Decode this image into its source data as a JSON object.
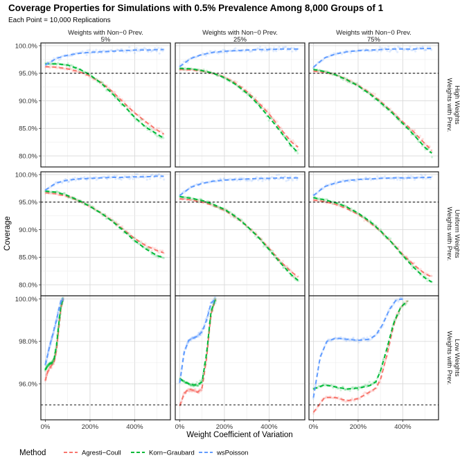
{
  "chart_data": {
    "type": "scatter",
    "title": "Coverage Properties for Simulations with 0.5% Prevalence Among 8,000 Groups of 1",
    "subtitle": "Each Point = 10,000 Replications",
    "xlabel": "Weight Coefficient of Variation",
    "ylabel": "Coverage",
    "x_ticks": [
      "0%",
      "200%",
      "400%"
    ],
    "reference_line": 0.95,
    "col_strips": [
      {
        "line1": "Weights with Non−0 Prev.",
        "line2": "5%"
      },
      {
        "line1": "Weights with Non−0 Prev.",
        "line2": "25%"
      },
      {
        "line1": "Weights with Non−0 Prev.",
        "line2": "75%"
      }
    ],
    "row_strips": [
      {
        "line1": "Weights with Prev.",
        "line2": "High Weights"
      },
      {
        "line1": "Weights with Prev.",
        "line2": "Uniform Weights"
      },
      {
        "line1": "Weights with Prev.",
        "line2": "Low Weights"
      }
    ],
    "rows": [
      {
        "ylim": [
          0.78,
          1.005
        ],
        "y_ticks": [
          "80.0%",
          "85.0%",
          "90.0%",
          "95.0%",
          "100.0%"
        ],
        "y_tick_values": [
          0.8,
          0.85,
          0.9,
          0.95,
          1.0
        ]
      },
      {
        "ylim": [
          0.78,
          1.005
        ],
        "y_ticks": [
          "80.0%",
          "85.0%",
          "90.0%",
          "95.0%",
          "100.0%"
        ],
        "y_tick_values": [
          0.8,
          0.85,
          0.9,
          0.95,
          1.0
        ]
      },
      {
        "ylim": [
          0.943,
          1.0015
        ],
        "y_ticks": [
          "96.0%",
          "98.0%",
          "100.0%"
        ],
        "y_tick_values": [
          0.96,
          0.98,
          1.0
        ]
      }
    ],
    "xlim": [
      -0.2,
      5.6
    ],
    "legend": {
      "title": "Method",
      "position": "bottom",
      "entries": [
        {
          "name": "Agresti−Coull",
          "color": "#F8766D"
        },
        {
          "name": "Korn−Graubard",
          "color": "#00BA38"
        },
        {
          "name": "wsPoisson",
          "color": "#619CFF"
        }
      ]
    },
    "panels": [
      {
        "row": 0,
        "col": 0,
        "series": [
          {
            "method": "Agresti−Coull",
            "x": [
              0,
              0.5,
              1.0,
              1.5,
              2.0,
              2.5,
              3.0,
              3.5,
              4.0,
              4.5,
              5.0,
              5.3
            ],
            "y": [
              0.962,
              0.961,
              0.958,
              0.953,
              0.945,
              0.933,
              0.917,
              0.897,
              0.878,
              0.862,
              0.847,
              0.84
            ]
          },
          {
            "method": "Korn−Graubard",
            "x": [
              0,
              0.5,
              1.0,
              1.5,
              2.0,
              2.5,
              3.0,
              3.5,
              4.0,
              4.5,
              5.0,
              5.3
            ],
            "y": [
              0.967,
              0.967,
              0.965,
              0.958,
              0.947,
              0.932,
              0.913,
              0.892,
              0.87,
              0.852,
              0.84,
              0.832
            ]
          },
          {
            "method": "wsPoisson",
            "x": [
              0,
              0.5,
              1.0,
              1.5,
              2.0,
              2.5,
              3.0,
              3.5,
              4.0,
              4.5,
              5.0,
              5.3
            ],
            "y": [
              0.965,
              0.977,
              0.983,
              0.986,
              0.988,
              0.989,
              0.99,
              0.991,
              0.992,
              0.992,
              0.993,
              0.993
            ]
          }
        ]
      },
      {
        "row": 0,
        "col": 1,
        "series": [
          {
            "method": "Agresti−Coull",
            "x": [
              0,
              0.5,
              1.0,
              1.5,
              2.0,
              2.5,
              3.0,
              3.5,
              4.0,
              4.5,
              5.0,
              5.3
            ],
            "y": [
              0.957,
              0.956,
              0.954,
              0.95,
              0.943,
              0.932,
              0.917,
              0.898,
              0.876,
              0.85,
              0.825,
              0.816
            ]
          },
          {
            "method": "Korn−Graubard",
            "x": [
              0,
              0.5,
              1.0,
              1.5,
              2.0,
              2.5,
              3.0,
              3.5,
              4.0,
              4.5,
              5.0,
              5.3
            ],
            "y": [
              0.959,
              0.958,
              0.955,
              0.95,
              0.942,
              0.93,
              0.914,
              0.894,
              0.87,
              0.845,
              0.818,
              0.806
            ]
          },
          {
            "method": "wsPoisson",
            "x": [
              0,
              0.5,
              1.0,
              1.5,
              2.0,
              2.5,
              3.0,
              3.5,
              4.0,
              4.5,
              5.0,
              5.3
            ],
            "y": [
              0.962,
              0.977,
              0.984,
              0.988,
              0.99,
              0.991,
              0.992,
              0.993,
              0.993,
              0.994,
              0.994,
              0.994
            ]
          }
        ]
      },
      {
        "row": 0,
        "col": 2,
        "series": [
          {
            "method": "Agresti−Coull",
            "x": [
              0,
              0.5,
              1.0,
              1.5,
              2.0,
              2.5,
              3.0,
              3.5,
              4.0,
              4.5,
              5.0,
              5.3
            ],
            "y": [
              0.954,
              0.952,
              0.947,
              0.939,
              0.928,
              0.915,
              0.899,
              0.881,
              0.862,
              0.843,
              0.822,
              0.81
            ]
          },
          {
            "method": "Korn−Graubard",
            "x": [
              0,
              0.5,
              1.0,
              1.5,
              2.0,
              2.5,
              3.0,
              3.5,
              4.0,
              4.5,
              5.0,
              5.3
            ],
            "y": [
              0.957,
              0.953,
              0.947,
              0.938,
              0.927,
              0.913,
              0.897,
              0.879,
              0.859,
              0.838,
              0.815,
              0.805
            ]
          },
          {
            "method": "wsPoisson",
            "x": [
              0,
              0.5,
              1.0,
              1.5,
              2.0,
              2.5,
              3.0,
              3.5,
              4.0,
              4.5,
              5.0,
              5.3
            ],
            "y": [
              0.961,
              0.978,
              0.985,
              0.989,
              0.991,
              0.992,
              0.993,
              0.994,
              0.994,
              0.994,
              0.995,
              0.995
            ]
          }
        ]
      },
      {
        "row": 1,
        "col": 0,
        "series": [
          {
            "method": "Agresti−Coull",
            "x": [
              0,
              0.5,
              1.0,
              1.5,
              2.0,
              2.5,
              3.0,
              3.5,
              4.0,
              4.5,
              5.0,
              5.3
            ],
            "y": [
              0.967,
              0.965,
              0.96,
              0.952,
              0.942,
              0.93,
              0.916,
              0.9,
              0.884,
              0.871,
              0.862,
              0.858
            ]
          },
          {
            "method": "Korn−Graubard",
            "x": [
              0,
              0.5,
              1.0,
              1.5,
              2.0,
              2.5,
              3.0,
              3.5,
              4.0,
              4.5,
              5.0,
              5.3
            ],
            "y": [
              0.97,
              0.968,
              0.962,
              0.953,
              0.942,
              0.93,
              0.915,
              0.898,
              0.88,
              0.865,
              0.853,
              0.849
            ]
          },
          {
            "method": "wsPoisson",
            "x": [
              0,
              0.5,
              1.0,
              1.5,
              2.0,
              2.5,
              3.0,
              3.5,
              4.0,
              4.5,
              5.0,
              5.3
            ],
            "y": [
              0.972,
              0.985,
              0.99,
              0.992,
              0.993,
              0.994,
              0.995,
              0.995,
              0.996,
              0.996,
              0.997,
              0.997
            ]
          }
        ]
      },
      {
        "row": 1,
        "col": 1,
        "series": [
          {
            "method": "Agresti−Coull",
            "x": [
              0,
              0.5,
              1.0,
              1.5,
              2.0,
              2.5,
              3.0,
              3.5,
              4.0,
              4.5,
              5.0,
              5.3
            ],
            "y": [
              0.956,
              0.954,
              0.95,
              0.944,
              0.935,
              0.923,
              0.907,
              0.888,
              0.866,
              0.843,
              0.823,
              0.815
            ]
          },
          {
            "method": "Korn−Graubard",
            "x": [
              0,
              0.5,
              1.0,
              1.5,
              2.0,
              2.5,
              3.0,
              3.5,
              4.0,
              4.5,
              5.0,
              5.3
            ],
            "y": [
              0.96,
              0.957,
              0.953,
              0.946,
              0.937,
              0.924,
              0.907,
              0.887,
              0.864,
              0.84,
              0.818,
              0.808
            ]
          },
          {
            "method": "wsPoisson",
            "x": [
              0,
              0.5,
              1.0,
              1.5,
              2.0,
              2.5,
              3.0,
              3.5,
              4.0,
              4.5,
              5.0,
              5.3
            ],
            "y": [
              0.962,
              0.977,
              0.984,
              0.988,
              0.99,
              0.991,
              0.992,
              0.993,
              0.993,
              0.994,
              0.994,
              0.994
            ]
          }
        ]
      },
      {
        "row": 1,
        "col": 2,
        "series": [
          {
            "method": "Agresti−Coull",
            "x": [
              0,
              0.5,
              1.0,
              1.5,
              2.0,
              2.5,
              3.0,
              3.5,
              4.0,
              4.5,
              5.0,
              5.3
            ],
            "y": [
              0.954,
              0.951,
              0.946,
              0.938,
              0.928,
              0.914,
              0.897,
              0.877,
              0.855,
              0.836,
              0.82,
              0.814
            ]
          },
          {
            "method": "Korn−Graubard",
            "x": [
              0,
              0.5,
              1.0,
              1.5,
              2.0,
              2.5,
              3.0,
              3.5,
              4.0,
              4.5,
              5.0,
              5.3
            ],
            "y": [
              0.958,
              0.954,
              0.949,
              0.941,
              0.93,
              0.916,
              0.898,
              0.877,
              0.853,
              0.831,
              0.812,
              0.805
            ]
          },
          {
            "method": "wsPoisson",
            "x": [
              0,
              0.5,
              1.0,
              1.5,
              2.0,
              2.5,
              3.0,
              3.5,
              4.0,
              4.5,
              5.0,
              5.3
            ],
            "y": [
              0.962,
              0.978,
              0.985,
              0.989,
              0.991,
              0.992,
              0.993,
              0.994,
              0.994,
              0.994,
              0.995,
              0.995
            ]
          }
        ]
      },
      {
        "row": 2,
        "col": 0,
        "series": [
          {
            "method": "Agresti−Coull",
            "x": [
              0,
              0.1,
              0.2,
              0.3,
              0.4,
              0.5,
              0.6,
              0.7,
              0.8
            ],
            "y": [
              0.9615,
              0.9655,
              0.9675,
              0.969,
              0.9705,
              0.976,
              0.986,
              0.996,
              1.0
            ]
          },
          {
            "method": "Korn−Graubard",
            "x": [
              0,
              0.1,
              0.2,
              0.3,
              0.4,
              0.5,
              0.6,
              0.7,
              0.8
            ],
            "y": [
              0.9665,
              0.9685,
              0.9695,
              0.97,
              0.972,
              0.978,
              0.988,
              0.997,
              1.0
            ]
          },
          {
            "method": "wsPoisson",
            "x": [
              0,
              0.1,
              0.2,
              0.3,
              0.4,
              0.5,
              0.6,
              0.7,
              0.8
            ],
            "y": [
              0.969,
              0.9735,
              0.978,
              0.982,
              0.986,
              0.99,
              0.995,
              0.999,
              1.0
            ]
          }
        ]
      },
      {
        "row": 2,
        "col": 1,
        "series": [
          {
            "method": "Agresti−Coull",
            "x": [
              0,
              0.2,
              0.4,
              0.6,
              0.8,
              1.0,
              1.2,
              1.4,
              1.6
            ],
            "y": [
              0.9495,
              0.9555,
              0.9575,
              0.957,
              0.956,
              0.958,
              0.972,
              0.993,
              1.0
            ]
          },
          {
            "method": "Korn−Graubard",
            "x": [
              0,
              0.2,
              0.4,
              0.6,
              0.8,
              1.0,
              1.2,
              1.4,
              1.6
            ],
            "y": [
              0.9625,
              0.961,
              0.96,
              0.9595,
              0.9595,
              0.961,
              0.974,
              0.994,
              1.0
            ]
          },
          {
            "method": "wsPoisson",
            "x": [
              0,
              0.2,
              0.4,
              0.6,
              0.8,
              1.0,
              1.2,
              1.4,
              1.6
            ],
            "y": [
              0.9605,
              0.975,
              0.9805,
              0.9815,
              0.9825,
              0.9845,
              0.99,
              0.998,
              1.0
            ]
          }
        ]
      },
      {
        "row": 2,
        "col": 2,
        "series": [
          {
            "method": "Agresti−Coull",
            "x": [
              0,
              0.5,
              1.0,
              1.5,
              2.0,
              2.5,
              2.8,
              3.0,
              3.3,
              3.6,
              3.9,
              4.2
            ],
            "y": [
              0.9465,
              0.9535,
              0.9535,
              0.952,
              0.953,
              0.956,
              0.958,
              0.962,
              0.974,
              0.988,
              0.996,
              0.999
            ]
          },
          {
            "method": "Korn−Graubard",
            "x": [
              0,
              0.5,
              1.0,
              1.5,
              2.0,
              2.5,
              2.8,
              3.0,
              3.3,
              3.6,
              3.9,
              4.2
            ],
            "y": [
              0.9575,
              0.9595,
              0.9585,
              0.9575,
              0.958,
              0.959,
              0.961,
              0.966,
              0.977,
              0.989,
              0.996,
              0.999
            ]
          },
          {
            "method": "wsPoisson",
            "x": [
              0,
              0.3,
              0.6,
              1.0,
              1.5,
              2.0,
              2.5,
              2.8,
              3.1,
              3.4,
              3.7,
              4.0
            ],
            "y": [
              0.9535,
              0.9725,
              0.98,
              0.9815,
              0.981,
              0.9805,
              0.981,
              0.983,
              0.988,
              0.995,
              0.9995,
              1.0
            ]
          }
        ]
      }
    ]
  }
}
